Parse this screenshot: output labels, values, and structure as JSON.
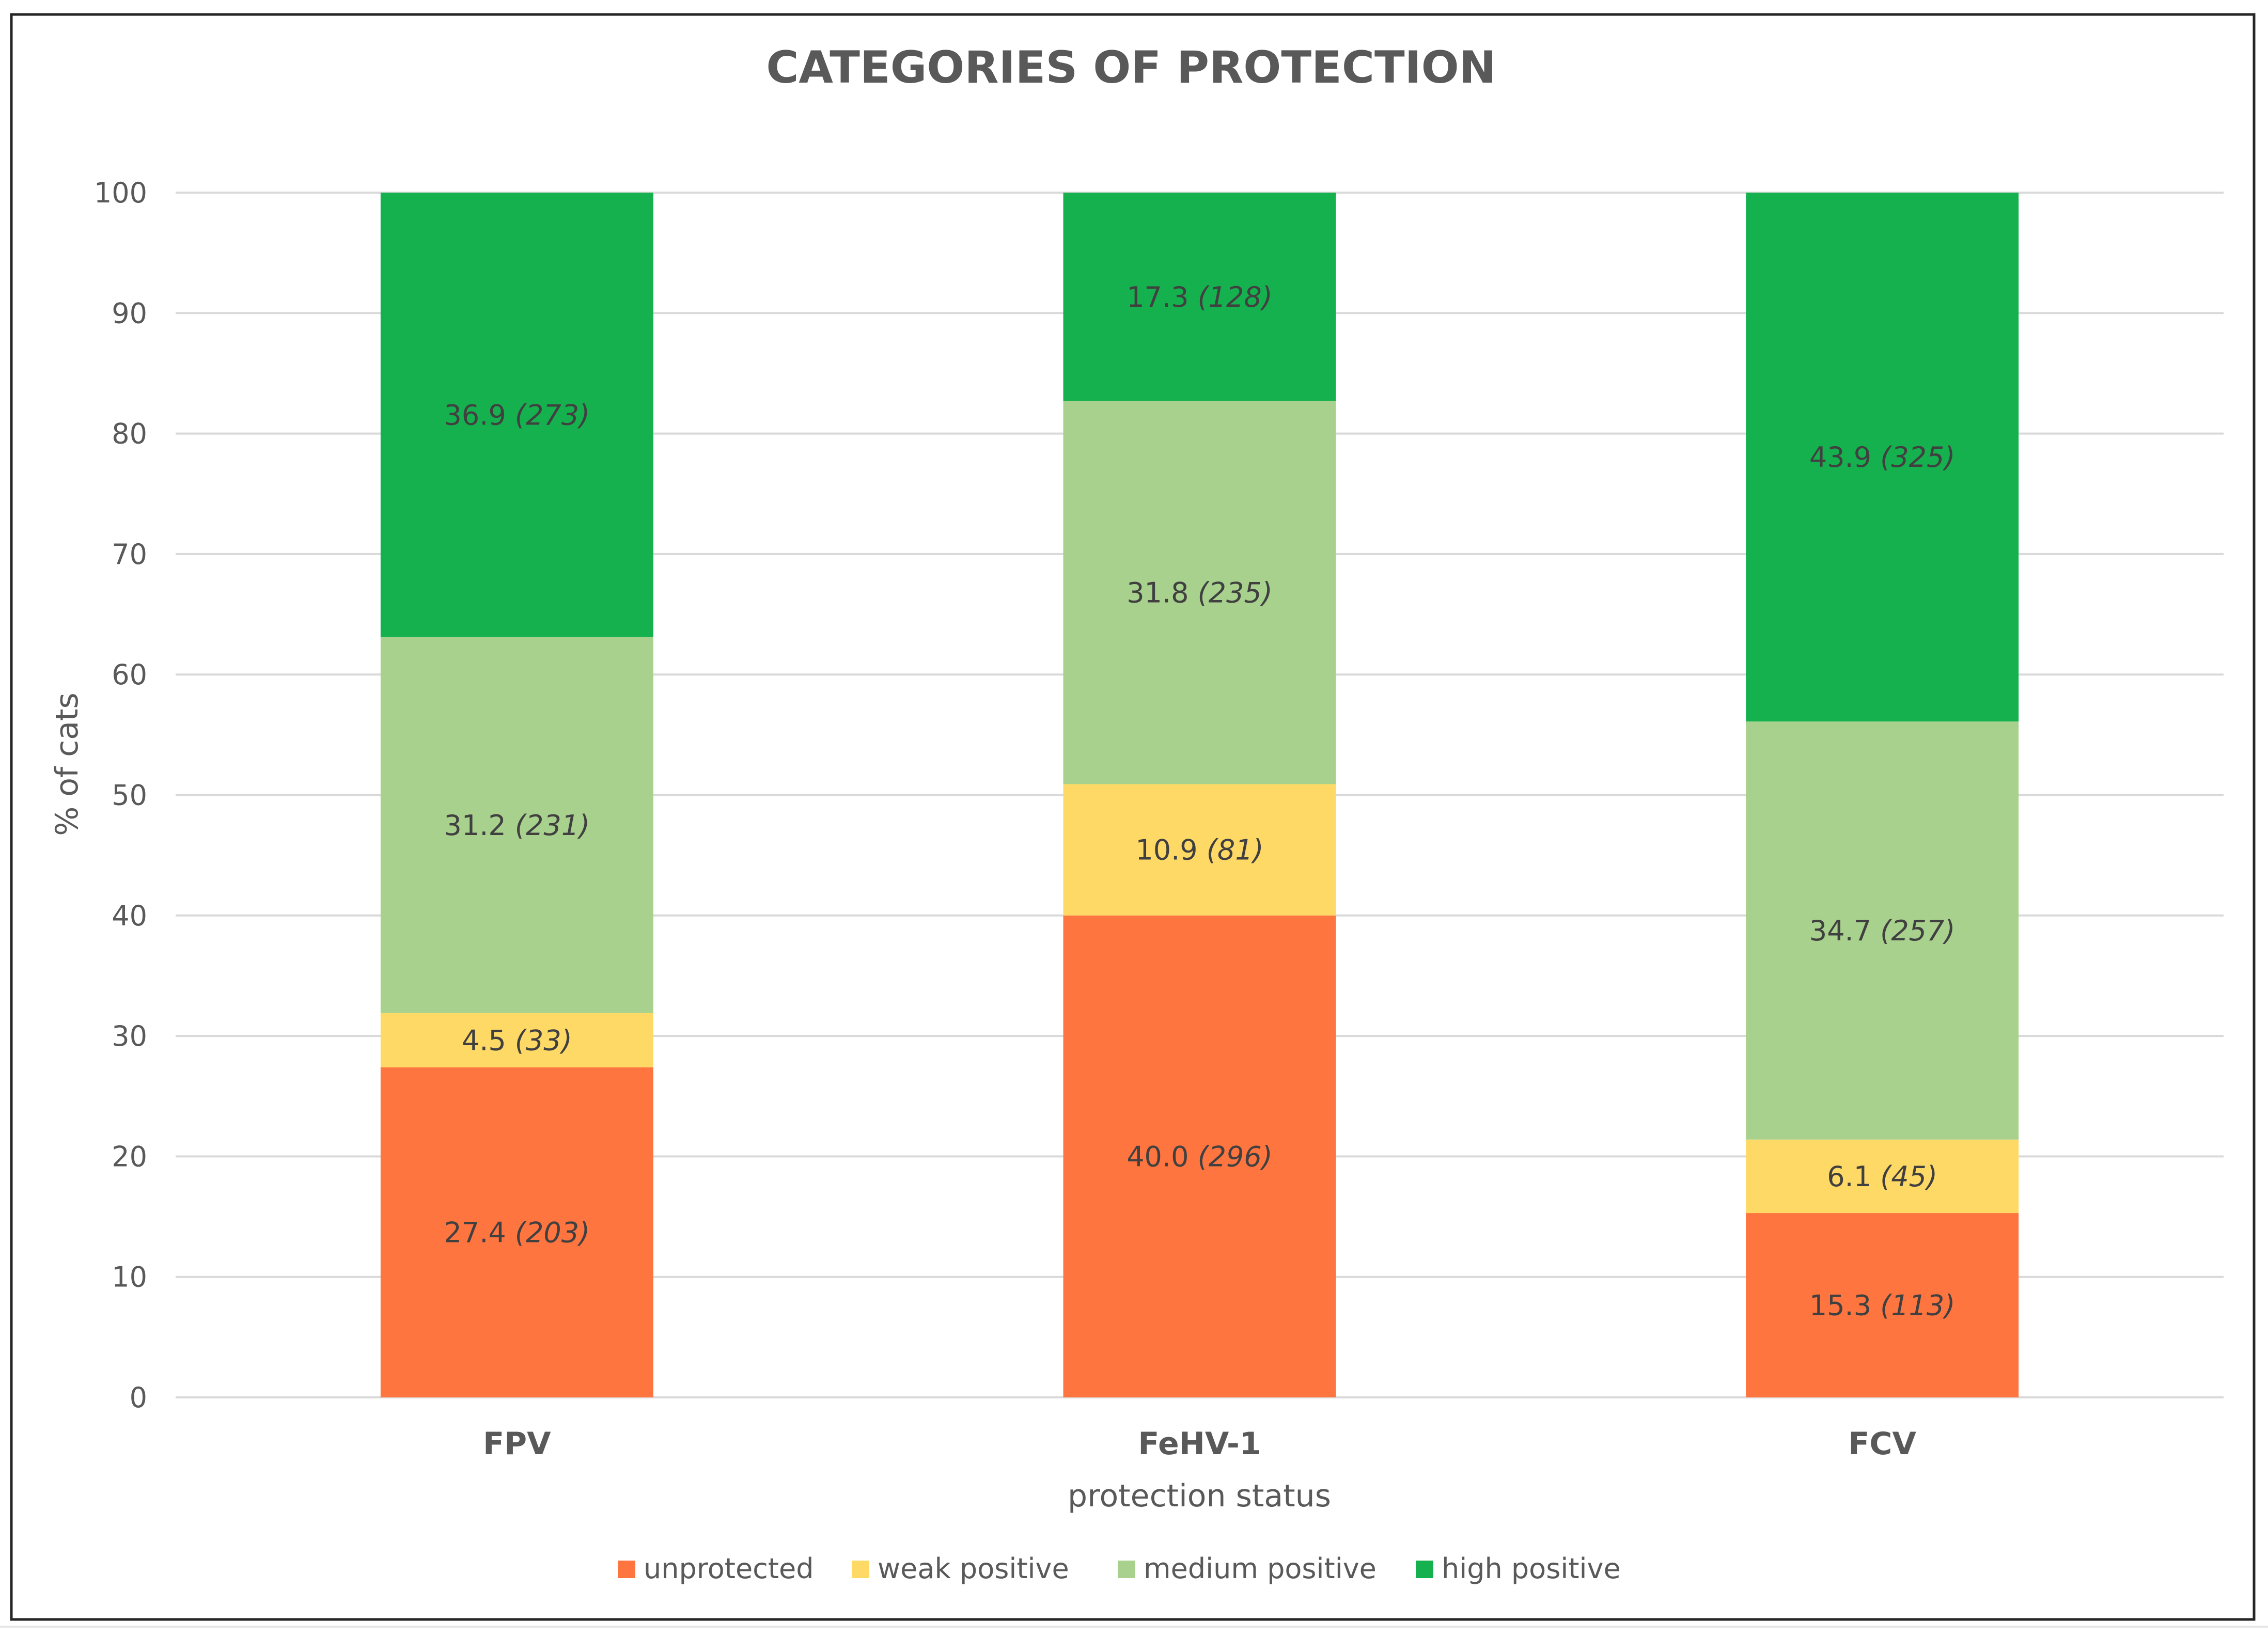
{
  "chart_data": {
    "type": "bar",
    "stacked": true,
    "title": "CATEGORIES OF PROTECTION",
    "xlabel": "protection status",
    "ylabel": "% of cats",
    "ylim": [
      0,
      100
    ],
    "yticks": [
      "0",
      "10",
      "20",
      "30",
      "40",
      "50",
      "60",
      "70",
      "80",
      "90",
      "100"
    ],
    "categories": [
      "FPV",
      "FeHV-1",
      "FCV"
    ],
    "grid": true,
    "legend_position": "bottom",
    "series": [
      {
        "name": "unprotected",
        "color": "#ff7540",
        "values": [
          27.4,
          40.0,
          15.3
        ],
        "labels": [
          "27.4",
          "40.0",
          "15.3"
        ],
        "counts": [
          "(203)",
          "(296)",
          "(113)"
        ]
      },
      {
        "name": "weak positive",
        "color": "#ffd966",
        "values": [
          4.5,
          10.9,
          6.1
        ],
        "labels": [
          "4.5",
          "10.9",
          "6.1"
        ],
        "counts": [
          "(33)",
          "(81)",
          "(45)"
        ]
      },
      {
        "name": "medium positive",
        "color": "#a9d18e",
        "values": [
          31.2,
          31.8,
          34.7
        ],
        "labels": [
          "31.2",
          "31.8",
          "34.7"
        ],
        "counts": [
          "(231)",
          "(235)",
          "(257)"
        ]
      },
      {
        "name": "high positive",
        "color": "#16b14f",
        "values": [
          36.9,
          17.3,
          43.9
        ],
        "labels": [
          "36.9",
          "17.3",
          "43.9"
        ],
        "counts": [
          "(273)",
          "(128)",
          "(325)"
        ]
      }
    ]
  }
}
